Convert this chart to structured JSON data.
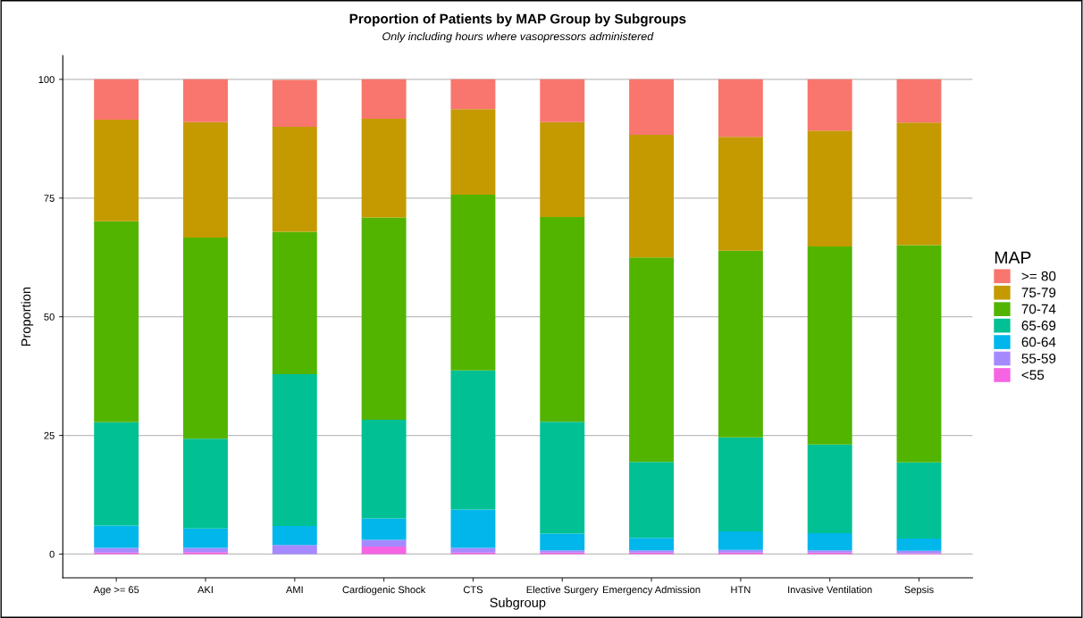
{
  "chart_data": {
    "type": "bar",
    "title": "Proportion of Patients by MAP Group by Subgroups",
    "subtitle": "Only including hours where vasopressors administered",
    "xlabel": "Subgroup",
    "ylabel": "Proportion",
    "legend_title": "MAP",
    "categories": [
      "Age >= 65",
      "AKI",
      "AMI",
      "Cardiogenic Shock",
      "CTS",
      "Elective Surgery",
      "Emergency Admission",
      "HTN",
      "Invasive Ventilation",
      "Sepsis"
    ],
    "stacked": true,
    "ylim": [
      -5,
      105
    ],
    "yticks": [
      0,
      25,
      50,
      75,
      100
    ],
    "grid": "y",
    "legend": "right",
    "series": [
      {
        "name": "<55",
        "color": "#f564e3",
        "values": [
          0.3,
          0.4,
          null,
          1.6,
          0.3,
          0.3,
          0.3,
          0.3,
          0.3,
          0.2
        ]
      },
      {
        "name": "55-59",
        "color": "#a58aff",
        "values": [
          1.0,
          0.9,
          1.9,
          1.4,
          1.0,
          0.5,
          0.5,
          0.6,
          0.5,
          0.5
        ]
      },
      {
        "name": "60-64",
        "color": "#00b6eb",
        "values": [
          4.7,
          4.1,
          4.0,
          4.5,
          8.1,
          3.5,
          2.6,
          3.9,
          3.6,
          2.6
        ]
      },
      {
        "name": "65-69",
        "color": "#00c094",
        "values": [
          21.8,
          18.9,
          32.0,
          20.8,
          29.3,
          23.6,
          16.0,
          19.8,
          18.7,
          16.0
        ]
      },
      {
        "name": "70-74",
        "color": "#53b400",
        "values": [
          42.3,
          42.4,
          30.0,
          42.6,
          37.0,
          43.1,
          43.1,
          39.3,
          41.7,
          45.8
        ]
      },
      {
        "name": "75-79",
        "color": "#c49a00",
        "values": [
          21.4,
          24.3,
          22.1,
          20.8,
          18.0,
          20.0,
          25.8,
          24.0,
          24.4,
          25.8
        ]
      },
      {
        "name": ">= 80",
        "color": "#f8766d",
        "values": [
          8.5,
          9.0,
          9.9,
          8.3,
          6.3,
          9.0,
          11.7,
          12.1,
          10.8,
          9.1
        ]
      }
    ]
  }
}
